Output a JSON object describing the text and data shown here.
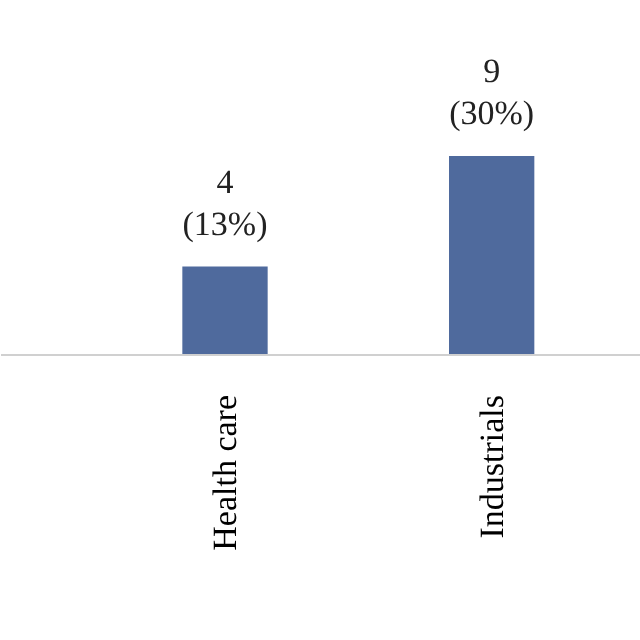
{
  "chart_data": {
    "type": "bar",
    "categories": [
      "Health care",
      "Industrials"
    ],
    "values": [
      4,
      9
    ],
    "value_labels": [
      "4\n(13%)",
      "9\n(30%)"
    ],
    "color": "#4f6a9d",
    "grid": false
  }
}
